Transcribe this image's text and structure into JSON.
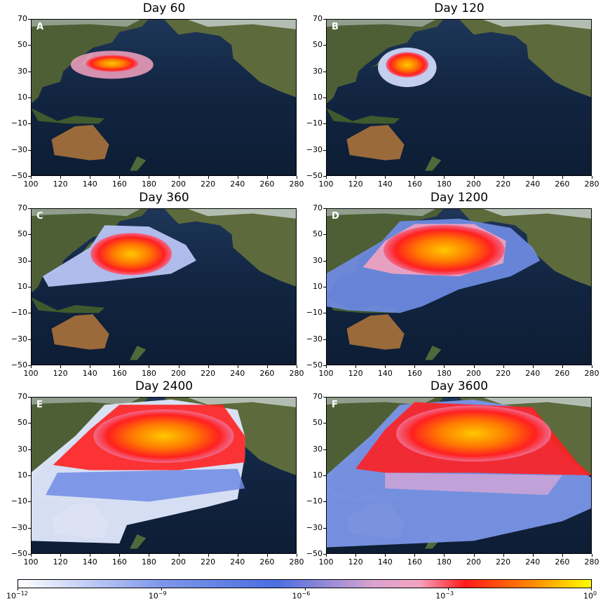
{
  "panels": [
    {
      "id": "A",
      "title": "Day 60",
      "extent": 1
    },
    {
      "id": "B",
      "title": "Day 120",
      "extent": 2
    },
    {
      "id": "C",
      "title": "Day 360",
      "extent": 3
    },
    {
      "id": "D",
      "title": "Day 1200",
      "extent": 4
    },
    {
      "id": "E",
      "title": "Day 2400",
      "extent": 5
    },
    {
      "id": "F",
      "title": "Day 3600",
      "extent": 6
    }
  ],
  "axes": {
    "y_ticks": [
      "70",
      "50",
      "30",
      "10",
      "−10",
      "−30",
      "−50"
    ],
    "x_ticks": [
      "100",
      "120",
      "140",
      "160",
      "180",
      "200",
      "220",
      "240",
      "260",
      "280"
    ]
  },
  "colorbar": {
    "ticks": [
      {
        "base": "10",
        "exp": "−12"
      },
      {
        "base": "10",
        "exp": "−9"
      },
      {
        "base": "10",
        "exp": "−6"
      },
      {
        "base": "10",
        "exp": "−3"
      },
      {
        "base": "10",
        "exp": "0"
      }
    ],
    "colors": [
      "#ffffff",
      "#4a6ee0",
      "#f4a3c0",
      "#ff1a1a",
      "#ffa500",
      "#ffff00"
    ]
  },
  "colors": {
    "ocean": "#142846",
    "land": "#5a6a3a",
    "desert": "#9a6a3a",
    "snow": "#e8eef0"
  }
}
